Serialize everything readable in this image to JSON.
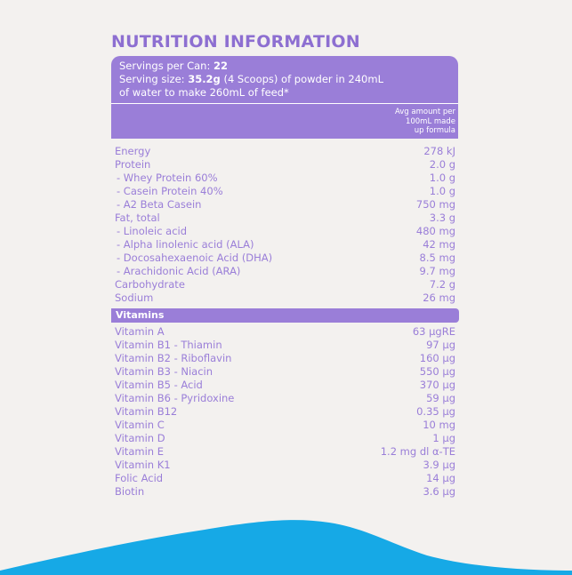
{
  "title": "NUTRITION INFORMATION",
  "servings": {
    "label": "Servings per Can: ",
    "value": "22"
  },
  "serving_size": {
    "label": "Serving size: ",
    "value": "35.2g",
    "rest": " (4 Scoops) of powder in 240mL of water to make 260mL of feed*"
  },
  "avg_header": {
    "line1": "Avg amount per",
    "line2": "100mL made",
    "line3": "up formula"
  },
  "nutrients": [
    {
      "label": "Energy",
      "value": "278 kJ"
    },
    {
      "label": "Protein",
      "value": "2.0 g"
    },
    {
      "label": " - Whey Protein 60%",
      "value": "1.0 g"
    },
    {
      "label": " - Casein Protein 40%",
      "value": "1.0 g"
    },
    {
      "label": " - A2 Beta Casein",
      "value": "750 mg"
    },
    {
      "label": "Fat, total",
      "value": "3.3 g"
    },
    {
      "label": " - Linoleic acid",
      "value": "480 mg"
    },
    {
      "label": " - Alpha linolenic acid (ALA)",
      "value": "42 mg"
    },
    {
      "label": " - Docosahexaenoic Acid (DHA)",
      "value": "8.5 mg"
    },
    {
      "label": " - Arachidonic Acid (ARA)",
      "value": "9.7 mg"
    },
    {
      "label": "Carbohydrate",
      "value": "7.2 g"
    },
    {
      "label": "Sodium",
      "value": "26 mg"
    }
  ],
  "vitamins_heading": "Vitamins",
  "vitamins": [
    {
      "label": "Vitamin A",
      "value": "63 µgRE"
    },
    {
      "label": "Vitamin B1 - Thiamin",
      "value": "97 µg"
    },
    {
      "label": "Vitamin B2 - Riboflavin",
      "value": "160 µg"
    },
    {
      "label": "Vitamin B3 - Niacin",
      "value": "550 µg"
    },
    {
      "label": "Vitamin B5 - Acid",
      "value": "370 µg"
    },
    {
      "label": "Vitamin B6 - Pyridoxine",
      "value": "59 µg"
    },
    {
      "label": "Vitamin B12",
      "value": "0.35 µg"
    },
    {
      "label": "Vitamin C",
      "value": "10 mg"
    },
    {
      "label": "Vitamin D",
      "value": "1 µg"
    },
    {
      "label": "Vitamin E",
      "value": "1.2 mg dl α-TE"
    },
    {
      "label": "Vitamin K1",
      "value": "3.9 µg"
    },
    {
      "label": "Folic Acid",
      "value": "14 µg"
    },
    {
      "label": "Biotin",
      "value": "3.6 µg"
    }
  ],
  "colors": {
    "accent": "#9a7ed8",
    "title": "#8d6fd1",
    "background": "#f3f1ef",
    "wave": "#16a9e6"
  }
}
